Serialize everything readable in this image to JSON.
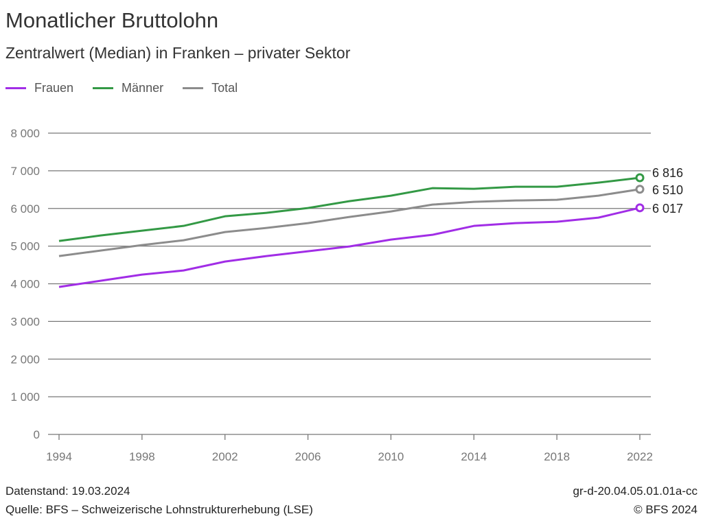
{
  "title": "Monatlicher Bruttolohn",
  "subtitle": "Zentralwert (Median) in Franken – privater Sektor",
  "footer": {
    "datenstand": "Datenstand: 19.03.2024",
    "quelle": "Quelle: BFS – Schweizerische Lohnstrukturerhebung (LSE)",
    "code": "gr-d-20.04.05.01.01a-cc",
    "copyright": "© BFS 2024"
  },
  "chart_data": {
    "type": "line",
    "title": "Monatlicher Bruttolohn",
    "subtitle": "Zentralwert (Median) in Franken – privater Sektor",
    "x": [
      1994,
      1996,
      1998,
      2000,
      2002,
      2004,
      2006,
      2008,
      2010,
      2012,
      2014,
      2016,
      2018,
      2020,
      2022
    ],
    "x_ticks": [
      "1994",
      "1998",
      "2002",
      "2006",
      "2010",
      "2014",
      "2018",
      "2022"
    ],
    "y_ticks": [
      "0",
      "1 000",
      "2 000",
      "3 000",
      "4 000",
      "5 000",
      "6 000",
      "7 000",
      "8 000"
    ],
    "ylim": [
      0,
      8000
    ],
    "grid": "horizontal",
    "legend_placement": "top-left",
    "series": [
      {
        "name": "Frauen",
        "color": "#a12de6",
        "values": [
          3916,
          4080,
          4244,
          4353,
          4590,
          4736,
          4863,
          4991,
          5173,
          5300,
          5537,
          5610,
          5647,
          5756,
          6017
        ],
        "end_label": "6 017"
      },
      {
        "name": "Männer",
        "color": "#339945",
        "values": [
          5137,
          5282,
          5410,
          5537,
          5792,
          5883,
          6011,
          6193,
          6339,
          6539,
          6521,
          6576,
          6576,
          6685,
          6816
        ],
        "end_label": "6 816"
      },
      {
        "name": "Total",
        "color": "#8c8c8c",
        "values": [
          4736,
          4882,
          5027,
          5155,
          5373,
          5483,
          5610,
          5774,
          5920,
          6102,
          6175,
          6211,
          6230,
          6339,
          6510
        ],
        "end_label": "6 510"
      }
    ]
  }
}
